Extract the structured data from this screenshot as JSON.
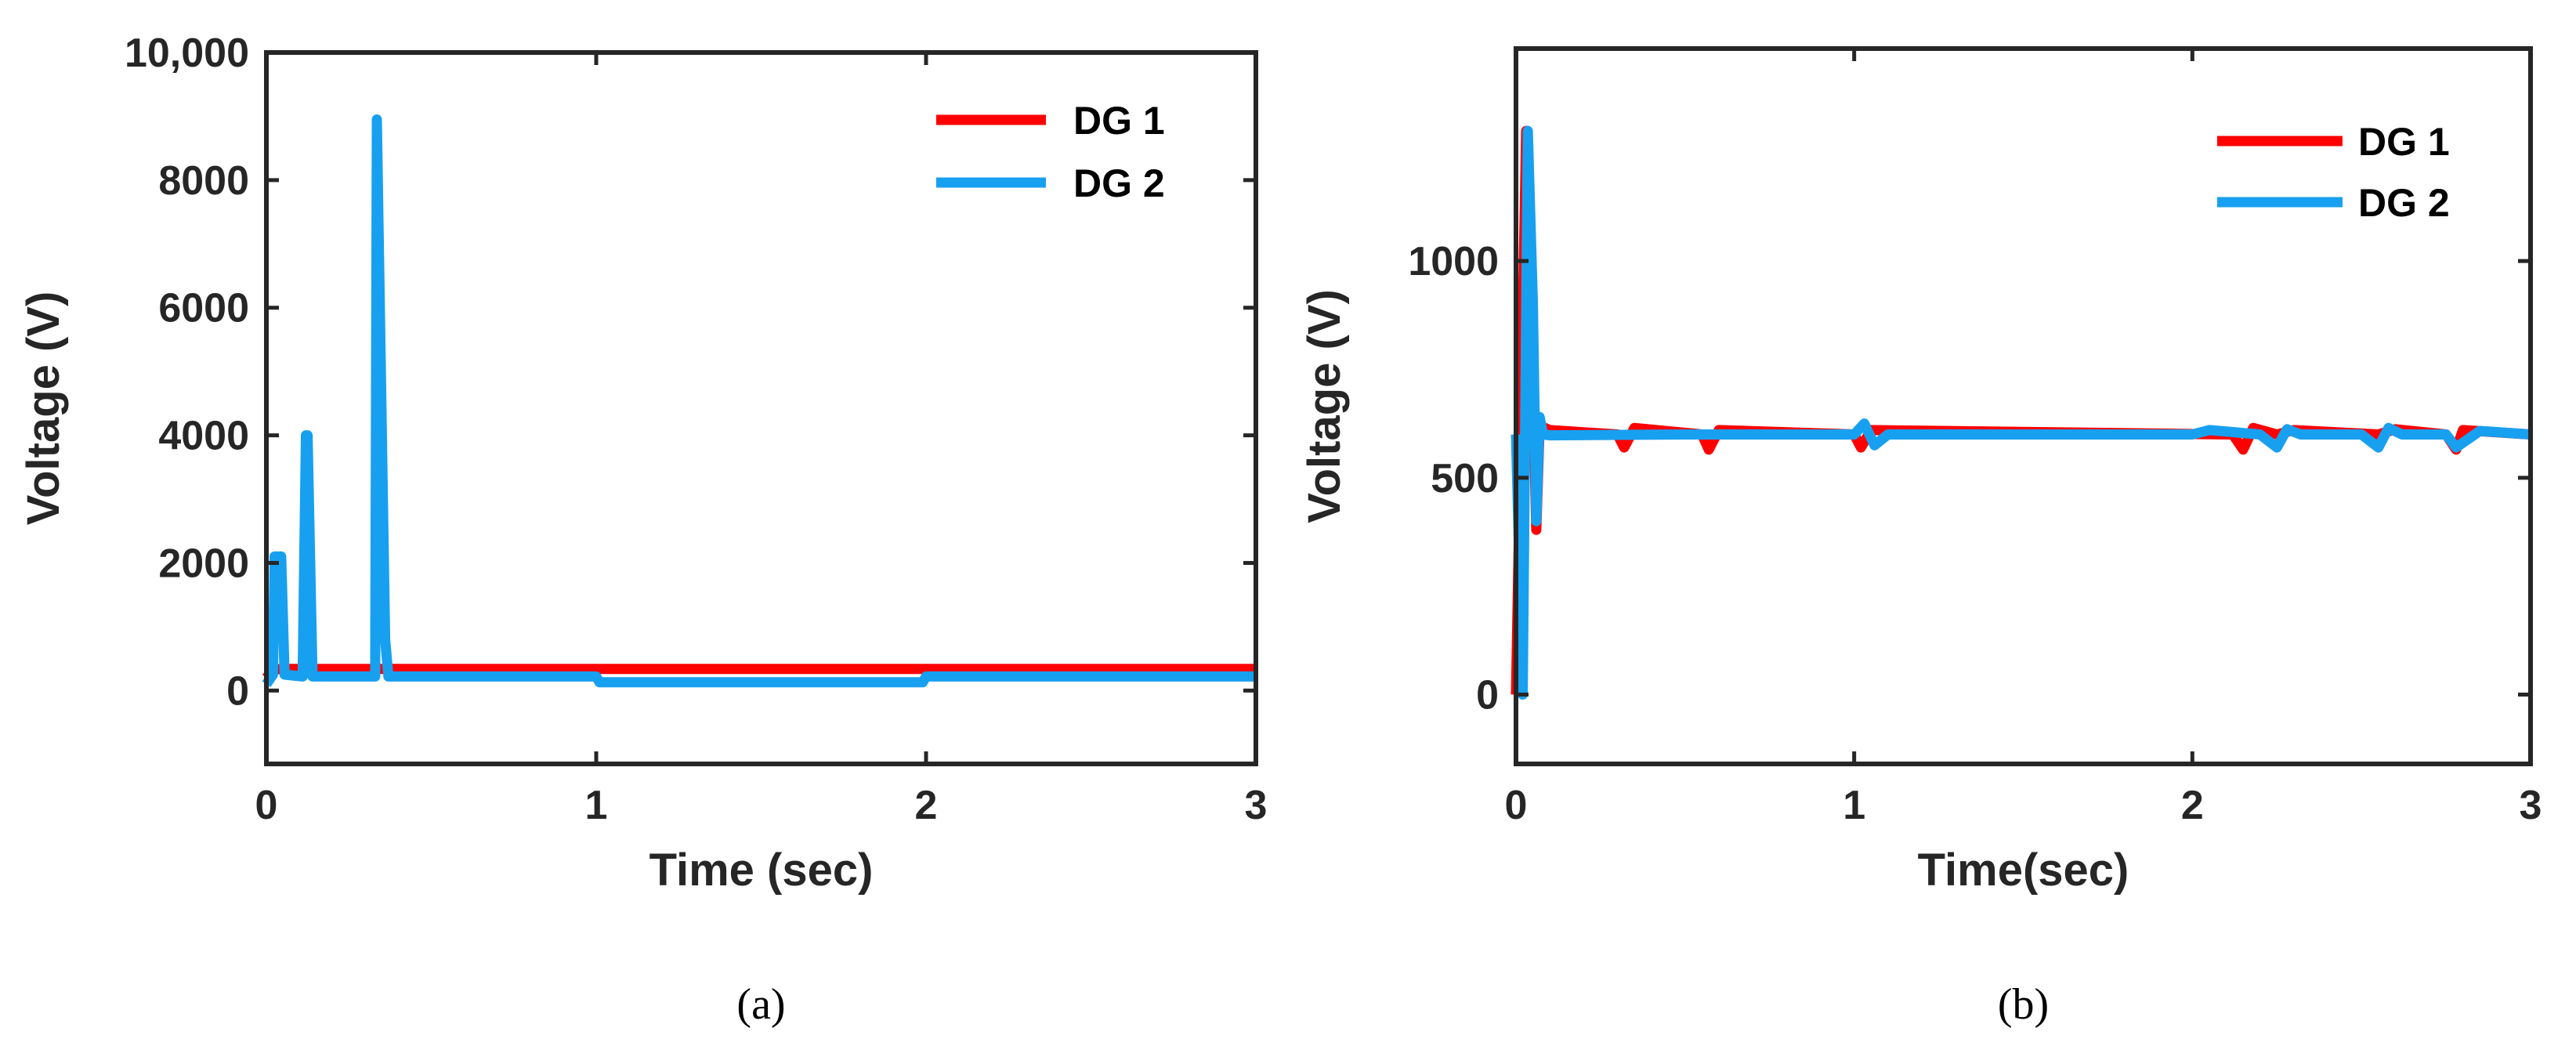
{
  "colors": {
    "dg1": "#ff0000",
    "dg2": "#18a0f0",
    "axis": "#262626"
  },
  "chart_data": [
    {
      "type": "line",
      "caption": "(a)",
      "xlabel": "Time (sec)",
      "ylabel": "Voltage (V)",
      "xlim": [
        0,
        3
      ],
      "ylim": [
        -1150,
        10000
      ],
      "xticks": [
        0,
        1,
        2,
        3
      ],
      "xtick_labels": [
        "0",
        "1",
        "2",
        "3"
      ],
      "yticks": [
        0,
        2000,
        4000,
        6000,
        8000,
        10000
      ],
      "ytick_labels": [
        "0",
        "2000",
        "4000",
        "6000",
        "8000",
        "10,000"
      ],
      "grid": false,
      "legend_position": "top-right",
      "series": [
        {
          "name": "DG 1",
          "color": "#ff0000",
          "x": [
            0,
            0.02,
            0.05,
            1.0,
            2.0,
            3.0
          ],
          "y": [
            200,
            330,
            340,
            340,
            340,
            340
          ]
        },
        {
          "name": "DG 2",
          "color": "#18a0f0",
          "x": [
            0,
            0.02,
            0.025,
            0.045,
            0.055,
            0.11,
            0.12,
            0.125,
            0.14,
            0.145,
            0.33,
            0.335,
            0.36,
            0.37,
            0.38,
            1.0,
            1.01,
            1.99,
            2.0,
            3.0
          ],
          "y": [
            100,
            250,
            2100,
            2100,
            250,
            220,
            4000,
            4000,
            220,
            220,
            220,
            8950,
            800,
            220,
            220,
            220,
            130,
            130,
            220,
            220
          ]
        }
      ]
    },
    {
      "type": "line",
      "caption": "(b)",
      "xlabel": "Time(sec)",
      "ylabel": "Voltage (V)",
      "xlim": [
        0,
        3
      ],
      "ylim": [
        -160,
        1490
      ],
      "xticks": [
        0,
        1,
        2,
        3
      ],
      "xtick_labels": [
        "0",
        "1",
        "2",
        "3"
      ],
      "yticks": [
        0,
        500,
        1000
      ],
      "ytick_labels": [
        "0",
        "500",
        "1000"
      ],
      "grid": false,
      "legend_position": "top-right",
      "series": [
        {
          "name": "DG 1",
          "color": "#ff0000",
          "x": [
            0,
            0.03,
            0.045,
            0.06,
            0.07,
            0.1,
            0.3,
            0.32,
            0.35,
            0.55,
            0.57,
            0.6,
            1.0,
            1.02,
            1.05,
            2.12,
            2.15,
            2.18,
            2.25,
            2.3,
            2.55,
            2.6,
            2.75,
            2.78,
            2.8,
            3.0
          ],
          "y": [
            0,
            1300,
            900,
            380,
            620,
            610,
            600,
            570,
            615,
            600,
            565,
            610,
            600,
            570,
            610,
            600,
            565,
            615,
            600,
            610,
            600,
            612,
            600,
            565,
            610,
            600
          ]
        },
        {
          "name": "DG 2",
          "color": "#18a0f0",
          "x": [
            0,
            0.02,
            0.035,
            0.05,
            0.06,
            0.07,
            0.08,
            0.1,
            0.5,
            1.0,
            1.03,
            1.06,
            1.1,
            2.0,
            2.05,
            2.2,
            2.25,
            2.28,
            2.32,
            2.5,
            2.55,
            2.58,
            2.62,
            2.75,
            2.78,
            2.85,
            3.0
          ],
          "y": [
            600,
            0,
            1300,
            900,
            400,
            640,
            600,
            598,
            600,
            600,
            625,
            575,
            600,
            600,
            610,
            600,
            570,
            612,
            600,
            600,
            570,
            615,
            600,
            600,
            570,
            608,
            600
          ]
        }
      ]
    }
  ]
}
